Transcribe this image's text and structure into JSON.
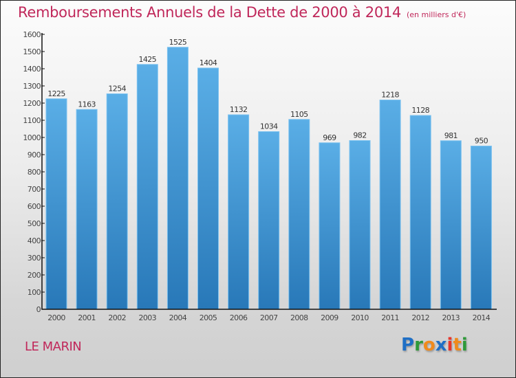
{
  "header": {
    "title": "Remboursements Annuels de la Dette de 2000 à 2014",
    "unit": "(en milliers d'€)"
  },
  "footer": {
    "city": "LE MARIN",
    "logo": {
      "letters": [
        {
          "char": "P",
          "color": "#1f6fc5"
        },
        {
          "char": "r",
          "color": "#2f9a3a"
        },
        {
          "char": "o",
          "color": "#f08a1c"
        },
        {
          "char": "x",
          "color": "#1f6fc5"
        },
        {
          "char": "i",
          "color": "#e8352b"
        },
        {
          "char": "t",
          "color": "#f08a1c"
        },
        {
          "char": "i",
          "color": "#2f9a3a"
        }
      ]
    }
  },
  "colors": {
    "title": "#c0275a",
    "bar_top": "#5aaee6",
    "bar_bottom": "#2878b8",
    "bar_edge": "#7cc2f0",
    "axis": "#111111"
  },
  "chart_data": {
    "type": "bar",
    "title": "Remboursements Annuels de la Dette de 2000 à 2014 (en milliers d'€)",
    "xlabel": "",
    "ylabel": "",
    "categories": [
      "2000",
      "2001",
      "2002",
      "2003",
      "2004",
      "2005",
      "2006",
      "2007",
      "2008",
      "2009",
      "2010",
      "2011",
      "2012",
      "2013",
      "2014"
    ],
    "values": [
      1225,
      1163,
      1254,
      1425,
      1525,
      1404,
      1132,
      1034,
      1105,
      969,
      982,
      1218,
      1128,
      981,
      950
    ],
    "ylim": [
      0,
      1600
    ],
    "yticks": [
      0,
      100,
      200,
      300,
      400,
      500,
      600,
      700,
      800,
      900,
      1000,
      1100,
      1200,
      1300,
      1400,
      1500,
      1600
    ],
    "grid": false,
    "legend": "none",
    "data_labels": true
  }
}
